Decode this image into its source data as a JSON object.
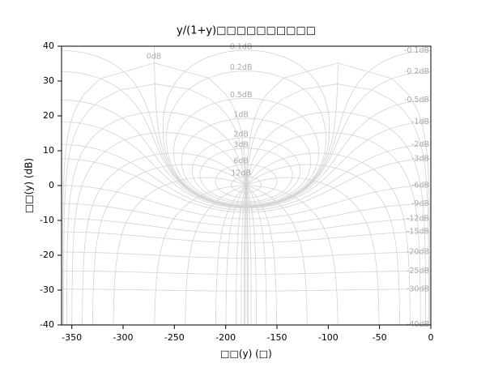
{
  "chart_data": {
    "type": "nichols",
    "title": "y/(1+y)□□□□□□□□□□",
    "x_label": "□□(y) (□)",
    "y_label": "□□(y) (dB)",
    "xlim": [
      -360,
      0
    ],
    "ylim": [
      -40,
      40
    ],
    "xticks": [
      -350,
      -300,
      -250,
      -200,
      -150,
      -100,
      -50,
      0
    ],
    "yticks": [
      -40,
      -30,
      -20,
      -10,
      0,
      10,
      20,
      30,
      40
    ],
    "color": "#d3d3d3",
    "gain_contours": [
      {
        "value": 0.1,
        "label": "0.1dB"
      },
      {
        "value": 0.2,
        "label": "0.2dB"
      },
      {
        "value": 0.5,
        "label": "0.5dB"
      },
      {
        "value": 1,
        "label": "1dB"
      },
      {
        "value": 2,
        "label": "2dB"
      },
      {
        "value": 3,
        "label": "3dB"
      },
      {
        "value": 6,
        "label": "6dB"
      },
      {
        "value": 12,
        "label": "12dB"
      },
      {
        "value": 0,
        "label": "0dB"
      },
      {
        "value": -0.1,
        "label": "-0.1dB"
      },
      {
        "value": -0.2,
        "label": "-0.2dB"
      },
      {
        "value": -0.5,
        "label": "-0.5dB"
      },
      {
        "value": -1,
        "label": "-1dB"
      },
      {
        "value": -2,
        "label": "-2dB"
      },
      {
        "value": -3,
        "label": "-3dB"
      },
      {
        "value": -6,
        "label": "-6dB"
      },
      {
        "value": -9,
        "label": "-9dB"
      },
      {
        "value": -12,
        "label": "-12dB"
      },
      {
        "value": -15,
        "label": "-15dB"
      },
      {
        "value": -20,
        "label": "-20dB"
      },
      {
        "value": -25,
        "label": "-25dB"
      },
      {
        "value": -30,
        "label": "-30dB"
      },
      {
        "value": -40,
        "label": "-40dB"
      }
    ],
    "phase_contours": [
      -1,
      -2,
      -5,
      -10,
      -20,
      -30,
      -50,
      -90,
      -120,
      -150,
      -160,
      -170,
      -175,
      -178,
      -179
    ]
  }
}
